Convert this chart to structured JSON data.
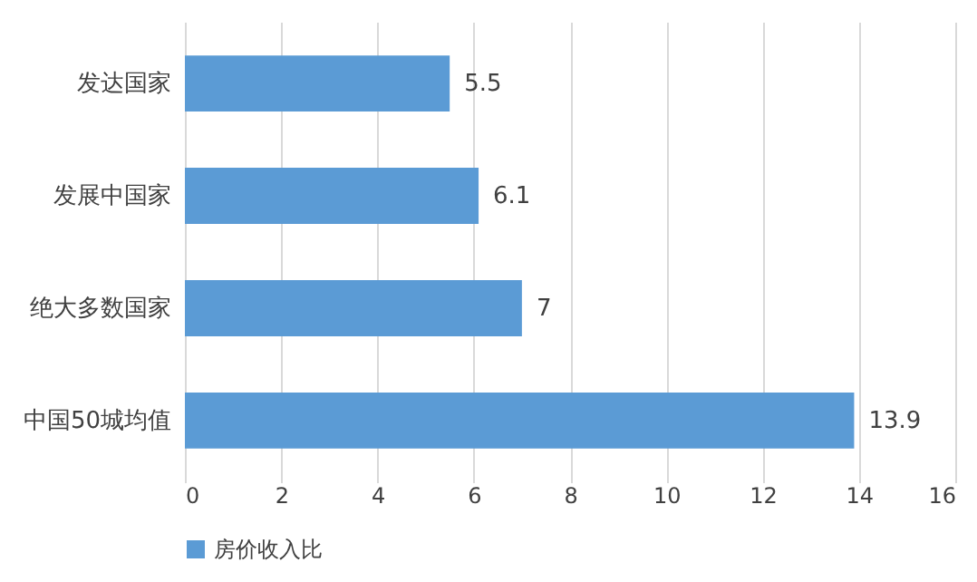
{
  "chart_data": {
    "type": "bar",
    "orientation": "horizontal",
    "categories": [
      "发达国家",
      "发展中国家",
      "绝大多数国家",
      "中国50城均值"
    ],
    "series": [
      {
        "name": "房价收入比",
        "color": "#5b9bd5",
        "values": [
          5.5,
          6.1,
          7,
          13.9
        ]
      }
    ],
    "xlim": [
      0,
      16
    ],
    "xticks": [
      0,
      2,
      4,
      6,
      8,
      10,
      12,
      14,
      16
    ],
    "grid": "x",
    "legend": "bottom",
    "data_labels": true
  }
}
